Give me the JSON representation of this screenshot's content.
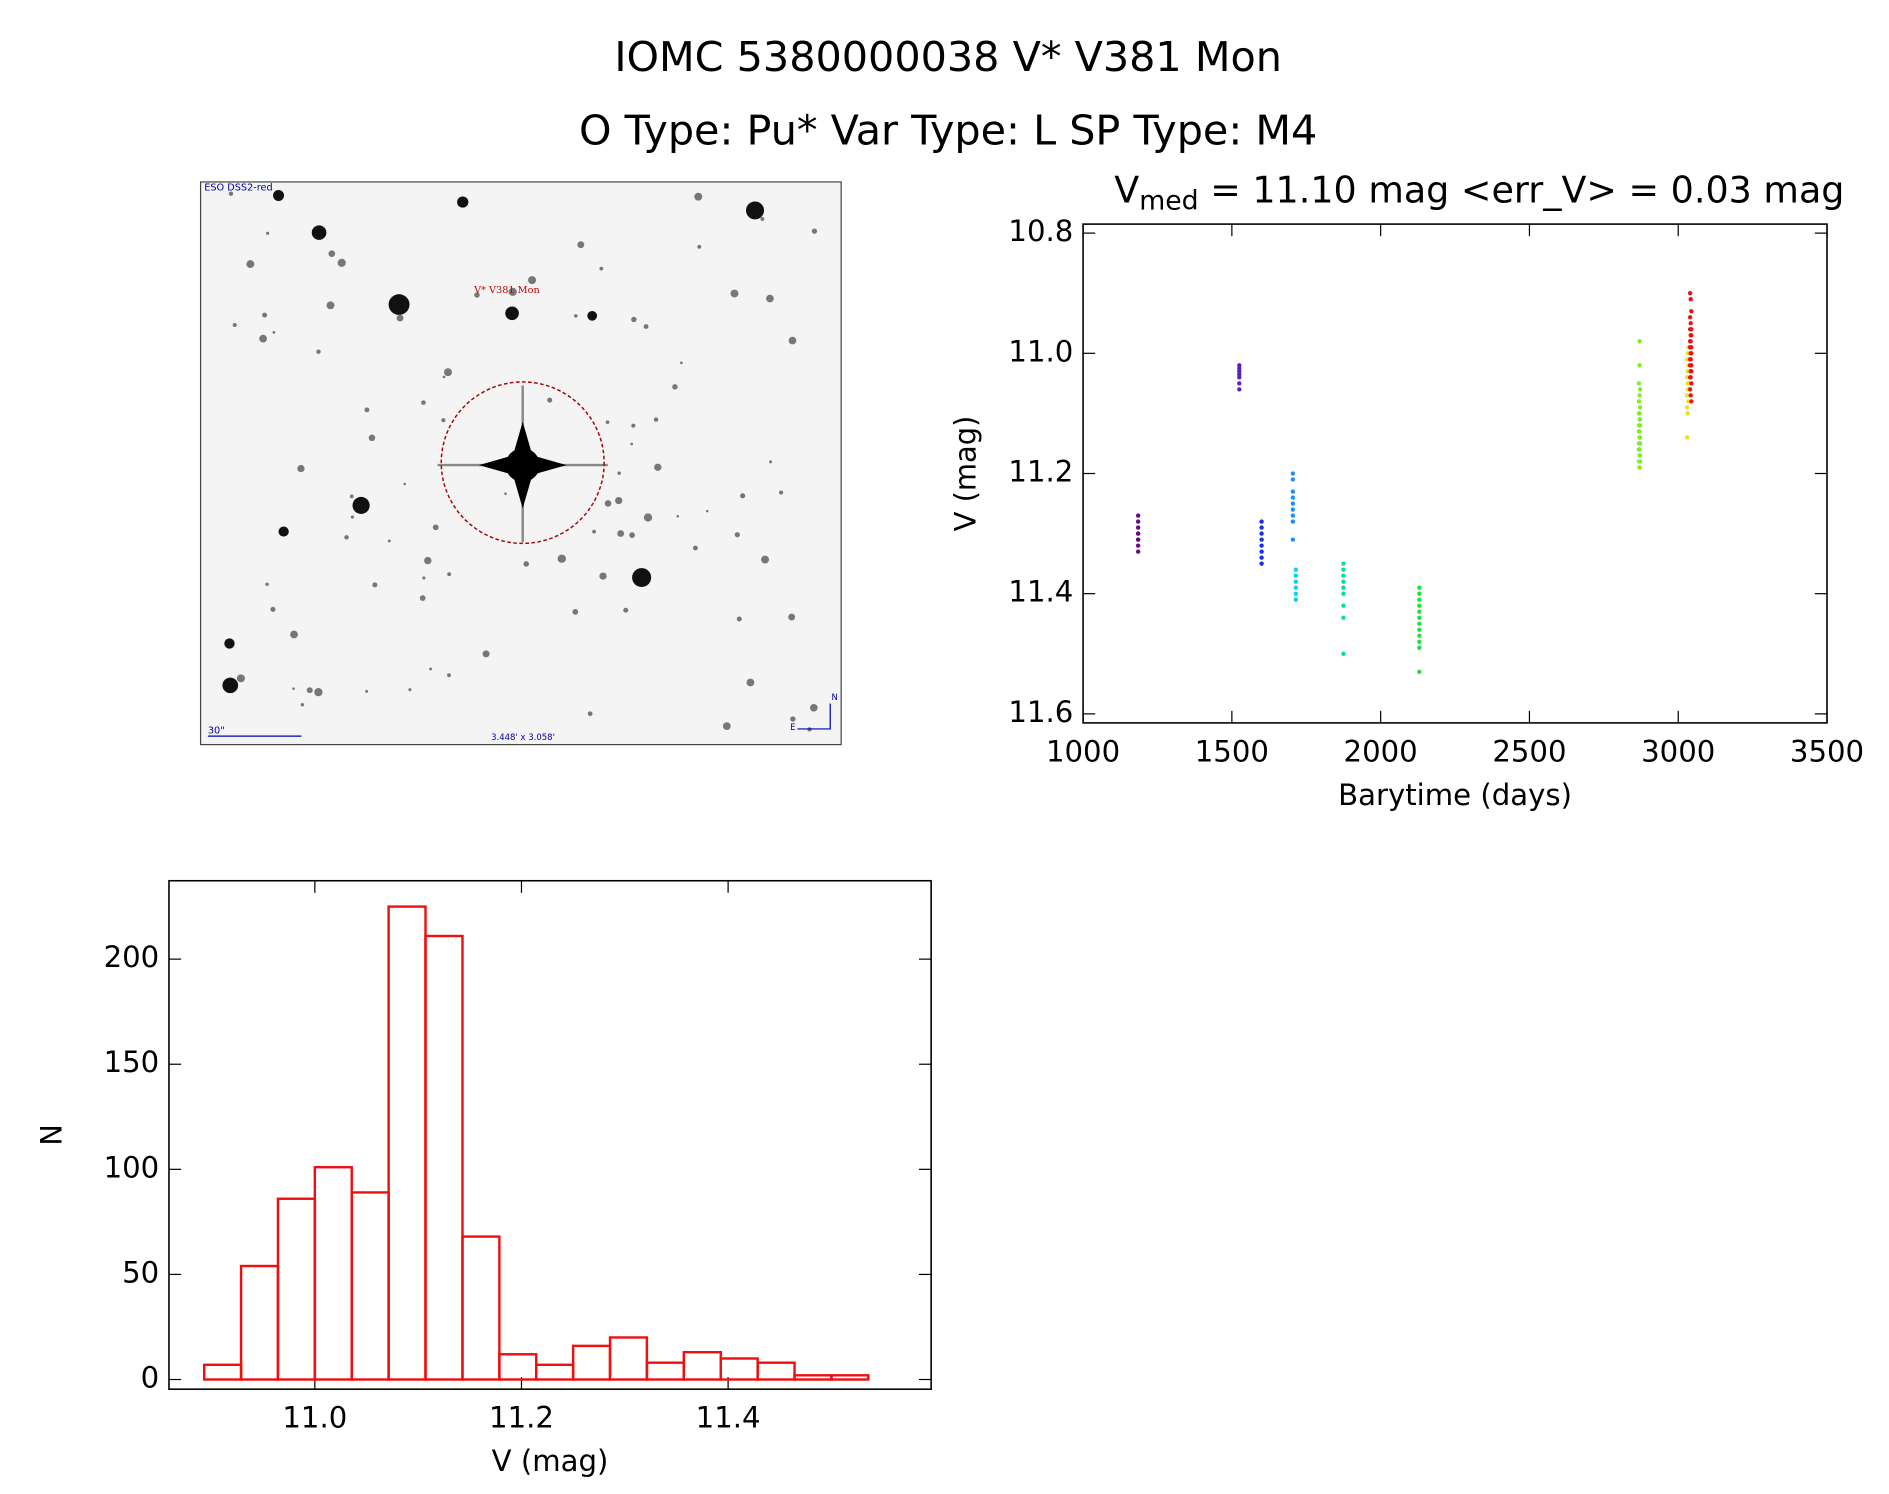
{
  "title": "IOMC 5380000038   V* V381 Mon",
  "subtitle": "O Type: Pu*  Var Type: L  SP Type: M4",
  "image": {
    "survey": "ESO DSS2-red",
    "target": "V* V381 Mon",
    "scale": "30\"",
    "size": "3.448' x 3.058'",
    "north": "N",
    "east": "E"
  },
  "chart_data": [
    {
      "type": "scatter",
      "title": [
        "V",
        "med",
        " = 11.10 mag <err_V> = 0.03 mag"
      ],
      "xlabel": "Barytime (days)",
      "ylabel": "V (mag)",
      "xlim": [
        1000,
        3500
      ],
      "xticks": [
        1000,
        1500,
        2000,
        2500,
        3000,
        3500
      ],
      "ylim": [
        11.615,
        10.785
      ],
      "yticks": [
        10.8,
        {
          "value": 11,
          "label": "11.0"
        },
        11.2,
        11.4,
        11.6
      ],
      "series": [
        {
          "color": "#6a0a80",
          "x": [
            1185,
            1185,
            1185,
            1185,
            1185,
            1185,
            1185,
            1185,
            1185
          ],
          "y": [
            11.27,
            11.28,
            11.29,
            11.3,
            11.3,
            11.31,
            11.31,
            11.32,
            11.33
          ]
        },
        {
          "color": "#5a20b8",
          "x": [
            1525,
            1525,
            1525,
            1525,
            1525,
            1525,
            1525
          ],
          "y": [
            11.02,
            11.025,
            11.03,
            11.035,
            11.04,
            11.05,
            11.06
          ]
        },
        {
          "color": "#1a30e0",
          "x": [
            1600,
            1600,
            1600,
            1600,
            1600,
            1600,
            1600,
            1600
          ],
          "y": [
            11.28,
            11.29,
            11.3,
            11.31,
            11.32,
            11.33,
            11.34,
            11.35
          ]
        },
        {
          "color": "#1a90ff",
          "x": [
            1705,
            1705,
            1705,
            1705,
            1705,
            1705,
            1705,
            1705,
            1705
          ],
          "y": [
            11.2,
            11.21,
            11.23,
            11.24,
            11.25,
            11.26,
            11.27,
            11.28,
            11.31
          ]
        },
        {
          "color": "#00d8f0",
          "x": [
            1715,
            1715,
            1715,
            1715,
            1715,
            1715
          ],
          "y": [
            11.36,
            11.37,
            11.38,
            11.39,
            11.4,
            11.41
          ]
        },
        {
          "color": "#00e0a0",
          "x": [
            1875,
            1875,
            1875,
            1875,
            1875,
            1875,
            1875,
            1875,
            1875
          ],
          "y": [
            11.35,
            11.36,
            11.37,
            11.38,
            11.39,
            11.4,
            11.42,
            11.44,
            11.5
          ]
        },
        {
          "color": "#20e040",
          "x": [
            2130,
            2130,
            2130,
            2130,
            2130,
            2130,
            2130,
            2130,
            2130,
            2130,
            2130,
            2130
          ],
          "y": [
            11.39,
            11.4,
            11.41,
            11.42,
            11.43,
            11.44,
            11.45,
            11.46,
            11.47,
            11.48,
            11.49,
            11.53
          ]
        },
        {
          "color": "#80ee20",
          "x": [
            2870,
            2870,
            2868,
            2872,
            2870,
            2868,
            2872,
            2870,
            2868,
            2872,
            2870,
            2868,
            2872,
            2870,
            2868,
            2872,
            2870,
            2868,
            2872,
            2870,
            2868,
            2872,
            2870,
            2868,
            2872,
            2870,
            2870,
            2870
          ],
          "y": [
            10.98,
            11.02,
            11.05,
            11.06,
            11.07,
            11.08,
            11.09,
            11.1,
            11.1,
            11.11,
            11.11,
            11.12,
            11.12,
            11.13,
            11.13,
            11.14,
            11.14,
            11.15,
            11.15,
            11.16,
            11.16,
            11.17,
            11.17,
            11.18,
            11.18,
            11.19,
            11.19,
            11.16
          ]
        },
        {
          "color": "#e8e020",
          "x": [
            3030,
            3032,
            3034,
            3030,
            3032,
            3034,
            3030,
            3032,
            3034,
            3030,
            3032,
            3034,
            3030,
            3032
          ],
          "y": [
            11.14,
            11.1,
            11.08,
            11.07,
            11.06,
            11.05,
            11.04,
            11.03,
            11.02,
            11.01,
            11.0,
            10.99,
            11.09,
            11.05
          ]
        },
        {
          "color": "#ee1010",
          "x": [
            3040,
            3042,
            3044,
            3040,
            3042,
            3044,
            3040,
            3042,
            3044,
            3040,
            3042,
            3044,
            3040,
            3042,
            3044,
            3040,
            3042,
            3044,
            3040,
            3042,
            3044,
            3040,
            3042,
            3044,
            3040,
            3042,
            3044
          ],
          "y": [
            10.9,
            10.91,
            10.93,
            10.94,
            10.95,
            10.96,
            10.96,
            10.97,
            10.97,
            10.98,
            10.98,
            10.99,
            10.99,
            11.0,
            11.0,
            11.01,
            11.01,
            11.02,
            11.02,
            11.03,
            11.03,
            11.04,
            11.04,
            11.05,
            11.06,
            11.07,
            11.08
          ]
        }
      ]
    },
    {
      "type": "histogram",
      "xlabel": "V (mag)",
      "ylabel": "N",
      "color": "#ee1010",
      "xlim": [
        10.8588,
        11.5965
      ],
      "xticks": [
        {
          "value": 11,
          "label": "11.0"
        },
        11.2,
        11.4
      ],
      "ylim": [
        -4.6,
        237.3
      ],
      "yticks": [
        0,
        50,
        100,
        150,
        200
      ],
      "bins": [
        10.8929,
        10.9286,
        10.9643,
        11.0,
        11.0357,
        11.0714,
        11.1071,
        11.1429,
        11.1786,
        11.2143,
        11.25,
        11.2857,
        11.3214,
        11.3571,
        11.3929,
        11.4286,
        11.4643,
        11.5,
        11.5357
      ],
      "values": [
        7,
        54,
        86,
        101,
        89,
        225,
        211,
        68,
        12,
        7,
        16,
        20,
        8,
        13,
        10,
        8,
        2,
        2
      ]
    }
  ]
}
